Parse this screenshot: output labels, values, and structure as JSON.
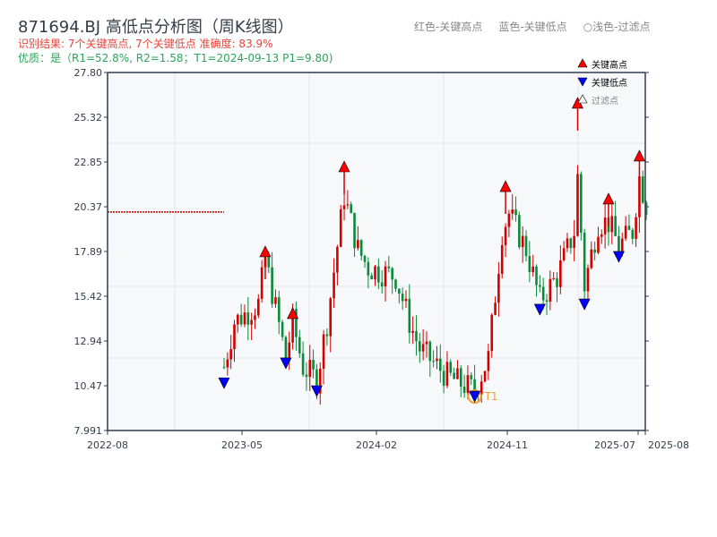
{
  "header": {
    "title": "871694.BJ 高低点分析图（周K线图）",
    "result": "识别结果: 7个关键高点, 7个关键低点  准确度: 83.9%",
    "quality": "优质：是（R1=52.8%, R2=1.58；T1=2024-09-13 P1=9.80)"
  },
  "top_legend": [
    "红色-关键高点",
    "蓝色-关键低点",
    "○浅色-过滤点"
  ],
  "chart_data": {
    "type": "candlestick",
    "title": "871694.BJ 高低点分析图（周K线图）",
    "ylim": [
      7.991,
      27.8
    ],
    "y_ticks": [
      "27.80",
      "25.32",
      "22.85",
      "20.37",
      "17.89",
      "15.42",
      "12.94",
      "10.47",
      "7.991"
    ],
    "x_ticks": [
      "2022-08",
      "2023-05",
      "2024-02",
      "2024-11",
      "2025-07",
      "2025-08"
    ],
    "legend": [
      "关键高点",
      "关键低点",
      "过滤点"
    ],
    "legend_position": "top-right",
    "colors": {
      "up": "#d40000",
      "down": "#0a8a3a",
      "high": "#ff0000",
      "low": "#0000ff",
      "t1": "#f0a030",
      "ref": "#c00000"
    },
    "reference_line": 20.08,
    "close_anchors": [
      [
        0,
        11.5
      ],
      [
        3,
        14
      ],
      [
        10,
        15
      ],
      [
        12,
        17.5
      ],
      [
        18,
        12
      ],
      [
        20,
        14
      ],
      [
        23,
        11.5
      ],
      [
        27,
        10.8
      ],
      [
        30,
        14
      ],
      [
        35,
        21
      ],
      [
        39,
        18
      ],
      [
        42,
        17
      ],
      [
        50,
        16.5
      ],
      [
        54,
        14
      ],
      [
        57,
        12.5
      ],
      [
        65,
        11
      ],
      [
        73,
        10.2
      ],
      [
        77,
        12
      ],
      [
        81,
        19
      ],
      [
        83,
        20
      ],
      [
        88,
        18
      ],
      [
        92,
        15.2
      ],
      [
        97,
        16.5
      ],
      [
        102,
        19
      ],
      [
        103,
        22
      ],
      [
        105,
        16
      ],
      [
        109,
        19.5
      ],
      [
        112,
        19.5
      ],
      [
        115,
        18.2
      ],
      [
        119,
        19
      ],
      [
        121,
        22
      ],
      [
        123,
        20.5
      ]
    ],
    "key_highs": [
      [
        12,
        17.85
      ],
      [
        20,
        14.43
      ],
      [
        35,
        22.55
      ],
      [
        82,
        21.46
      ],
      [
        103,
        26.07
      ],
      [
        112,
        20.77
      ],
      [
        121,
        23.15
      ]
    ],
    "key_lows": [
      [
        0,
        10.61
      ],
      [
        18,
        11.71
      ],
      [
        27,
        10.17
      ],
      [
        73,
        9.87
      ],
      [
        92,
        14.68
      ],
      [
        105,
        14.97
      ],
      [
        115,
        17.6
      ]
    ],
    "t1_label": "T1"
  }
}
